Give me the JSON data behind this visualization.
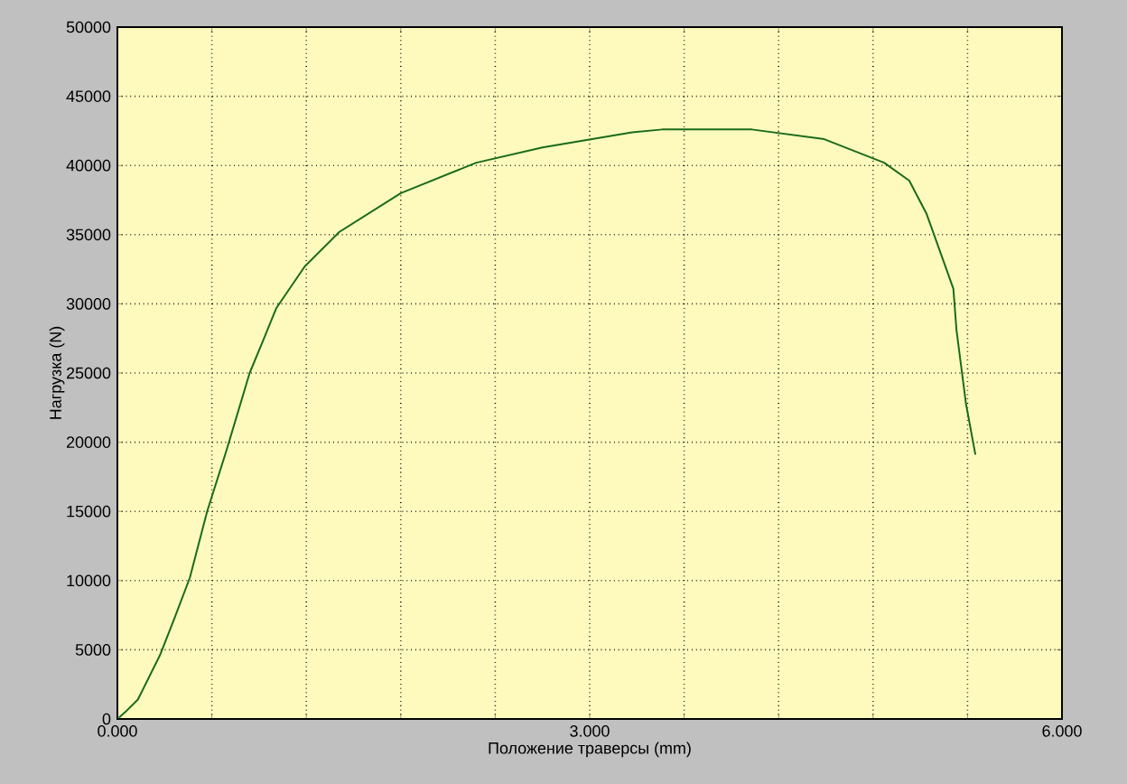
{
  "chart_data": {
    "type": "line",
    "xlabel": "Положение траверсы (mm)",
    "ylabel": "Нагрузка (N)",
    "x": [
      0.01,
      0.05,
      0.13,
      0.27,
      0.36,
      0.46,
      0.57,
      0.69,
      0.84,
      0.92,
      1.01,
      1.19,
      1.41,
      1.8,
      2.28,
      2.7,
      3.27,
      3.46,
      4.03,
      4.49,
      4.87,
      5.03,
      5.14,
      5.31,
      5.33,
      5.39,
      5.45
    ],
    "series": [
      {
        "color": "#1a6b1a",
        "values": [
          100,
          500,
          1400,
          4600,
          7200,
          10200,
          15000,
          19300,
          25000,
          27200,
          29700,
          32700,
          35200,
          38000,
          40200,
          41300,
          42400,
          42600,
          42600,
          41900,
          40200,
          38900,
          36500,
          31100,
          28100,
          22800,
          19100
        ]
      }
    ],
    "xlim": [
      0,
      6
    ],
    "ylim": [
      0,
      50000
    ],
    "xticks": [
      {
        "value": 0,
        "label": "0.000"
      },
      {
        "value": 0.6,
        "label": null
      },
      {
        "value": 1.2,
        "label": null
      },
      {
        "value": 1.8,
        "label": null
      },
      {
        "value": 2.4,
        "label": null
      },
      {
        "value": 3,
        "label": "3.000"
      },
      {
        "value": 3.6,
        "label": null
      },
      {
        "value": 4.2,
        "label": null
      },
      {
        "value": 4.8,
        "label": null
      },
      {
        "value": 5.4,
        "label": null
      },
      {
        "value": 6,
        "label": "6.000"
      }
    ],
    "yticks": [
      0,
      5000,
      10000,
      15000,
      20000,
      25000,
      30000,
      35000,
      40000,
      45000,
      50000
    ],
    "grid": true,
    "line_style": "solid"
  }
}
